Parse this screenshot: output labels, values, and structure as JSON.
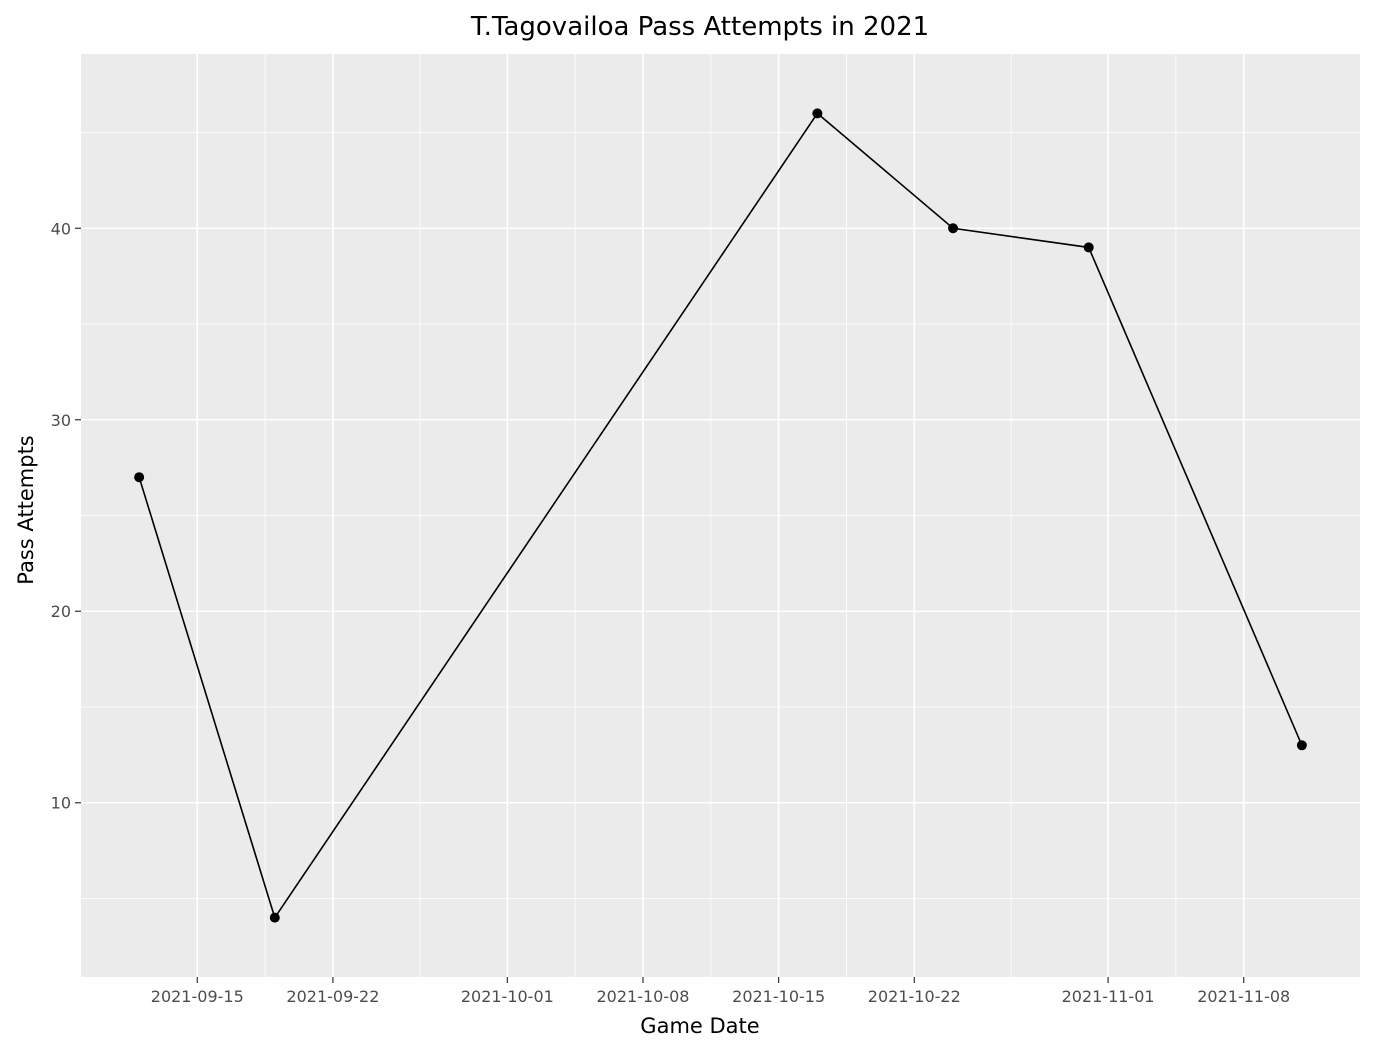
{
  "chart_data": {
    "type": "line",
    "title": "T.Tagovailoa Pass Attempts in 2021",
    "xlabel": "Game Date",
    "ylabel": "Pass Attempts",
    "x": [
      "2021-09-12",
      "2021-09-19",
      "2021-10-17",
      "2021-10-24",
      "2021-10-31",
      "2021-11-11"
    ],
    "y": [
      27,
      4,
      46,
      40,
      39,
      13
    ],
    "x_ticks": [
      "2021-09-15",
      "2021-09-22",
      "2021-10-01",
      "2021-10-08",
      "2021-10-15",
      "2021-10-22",
      "2021-11-01",
      "2021-11-08"
    ],
    "y_ticks": [
      10,
      20,
      30,
      40
    ],
    "ylim": [
      0.9,
      49.1
    ],
    "xlim": [
      "2021-09-09",
      "2021-11-14"
    ],
    "grid": true,
    "markers": true,
    "colors": {
      "panel_background": "#ebebeb",
      "grid": "#ffffff",
      "line": "#000000",
      "tick_text": "#4d4d4d",
      "text": "#000000"
    }
  }
}
